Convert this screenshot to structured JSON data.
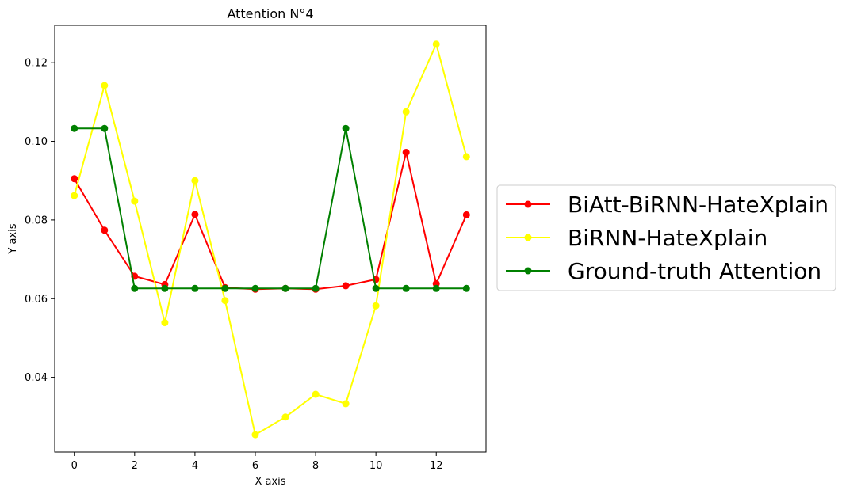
{
  "chart_data": {
    "type": "line",
    "title": "Attention N°4",
    "xlabel": "X axis",
    "ylabel": "Y axis",
    "xlim": [
      -0.65,
      13.65
    ],
    "ylim": [
      0.021,
      0.1295
    ],
    "xticks": [
      0,
      2,
      4,
      6,
      8,
      10,
      12
    ],
    "yticks": [
      0.04,
      0.06,
      0.08,
      0.1,
      0.12
    ],
    "ytick_labels": [
      "0.04",
      "0.06",
      "0.08",
      "0.10",
      "0.12"
    ],
    "grid": false,
    "legend_position": "center-right outside",
    "x": [
      0,
      1,
      2,
      3,
      4,
      5,
      6,
      7,
      8,
      9,
      10,
      11,
      12,
      13
    ],
    "series": [
      {
        "name": "BiAtt-BiRNN-HateXplain",
        "color": "#ff0000",
        "marker": "circle",
        "values": [
          0.0905,
          0.0774,
          0.0657,
          0.0636,
          0.0814,
          0.0628,
          0.0624,
          0.0626,
          0.0624,
          0.0633,
          0.0649,
          0.0972,
          0.0638,
          0.0813
        ]
      },
      {
        "name": "BiRNN-HateXplain",
        "color": "#ffff00",
        "marker": "circle",
        "values": [
          0.0862,
          0.1142,
          0.0848,
          0.0539,
          0.09,
          0.0595,
          0.0254,
          0.0299,
          0.0357,
          0.0333,
          0.0582,
          0.1075,
          0.1247,
          0.0961
        ]
      },
      {
        "name": "Ground-truth Attention",
        "color": "#008000",
        "marker": "circle",
        "values": [
          0.1033,
          0.1033,
          0.0626,
          0.0626,
          0.0626,
          0.0626,
          0.0626,
          0.0626,
          0.0626,
          0.1033,
          0.0626,
          0.0626,
          0.0626,
          0.0626
        ]
      }
    ]
  }
}
